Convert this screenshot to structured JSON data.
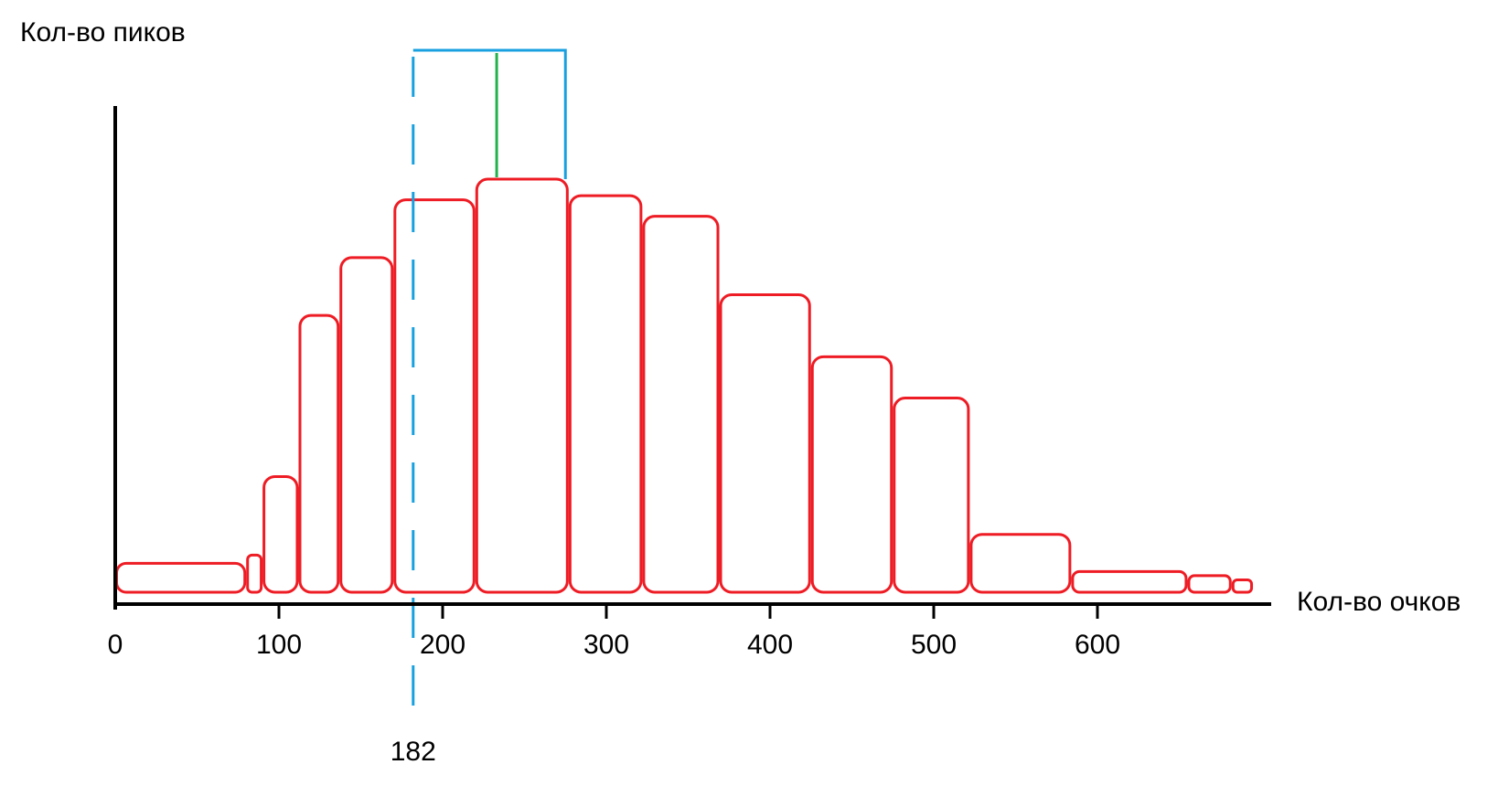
{
  "chart_data": {
    "type": "bar",
    "ylabel": "Кол-во пиков",
    "xlabel": "Кол-во очков",
    "xlim": [
      0,
      690
    ],
    "ylim": [
      0,
      100
    ],
    "xticks": [
      0,
      100,
      200,
      300,
      400,
      500,
      600
    ],
    "bins": [
      {
        "x0": 0,
        "x1": 80,
        "value": 7
      },
      {
        "x0": 80,
        "x1": 90,
        "value": 9
      },
      {
        "x0": 90,
        "x1": 112,
        "value": 28
      },
      {
        "x0": 112,
        "x1": 137,
        "value": 67
      },
      {
        "x0": 137,
        "x1": 170,
        "value": 81
      },
      {
        "x0": 170,
        "x1": 220,
        "value": 95
      },
      {
        "x0": 220,
        "x1": 277,
        "value": 100
      },
      {
        "x0": 277,
        "x1": 322,
        "value": 96
      },
      {
        "x0": 322,
        "x1": 369,
        "value": 91
      },
      {
        "x0": 369,
        "x1": 425,
        "value": 72
      },
      {
        "x0": 425,
        "x1": 475,
        "value": 57
      },
      {
        "x0": 475,
        "x1": 522,
        "value": 47
      },
      {
        "x0": 522,
        "x1": 584,
        "value": 14
      },
      {
        "x0": 584,
        "x1": 655,
        "value": 5
      },
      {
        "x0": 655,
        "x1": 682,
        "value": 4
      },
      {
        "x0": 682,
        "x1": 695,
        "value": 3
      }
    ],
    "marker": {
      "x": 182,
      "label": "182",
      "style": "dashed"
    },
    "bracket": {
      "x0": 182,
      "x1": 275,
      "center": 233
    }
  }
}
